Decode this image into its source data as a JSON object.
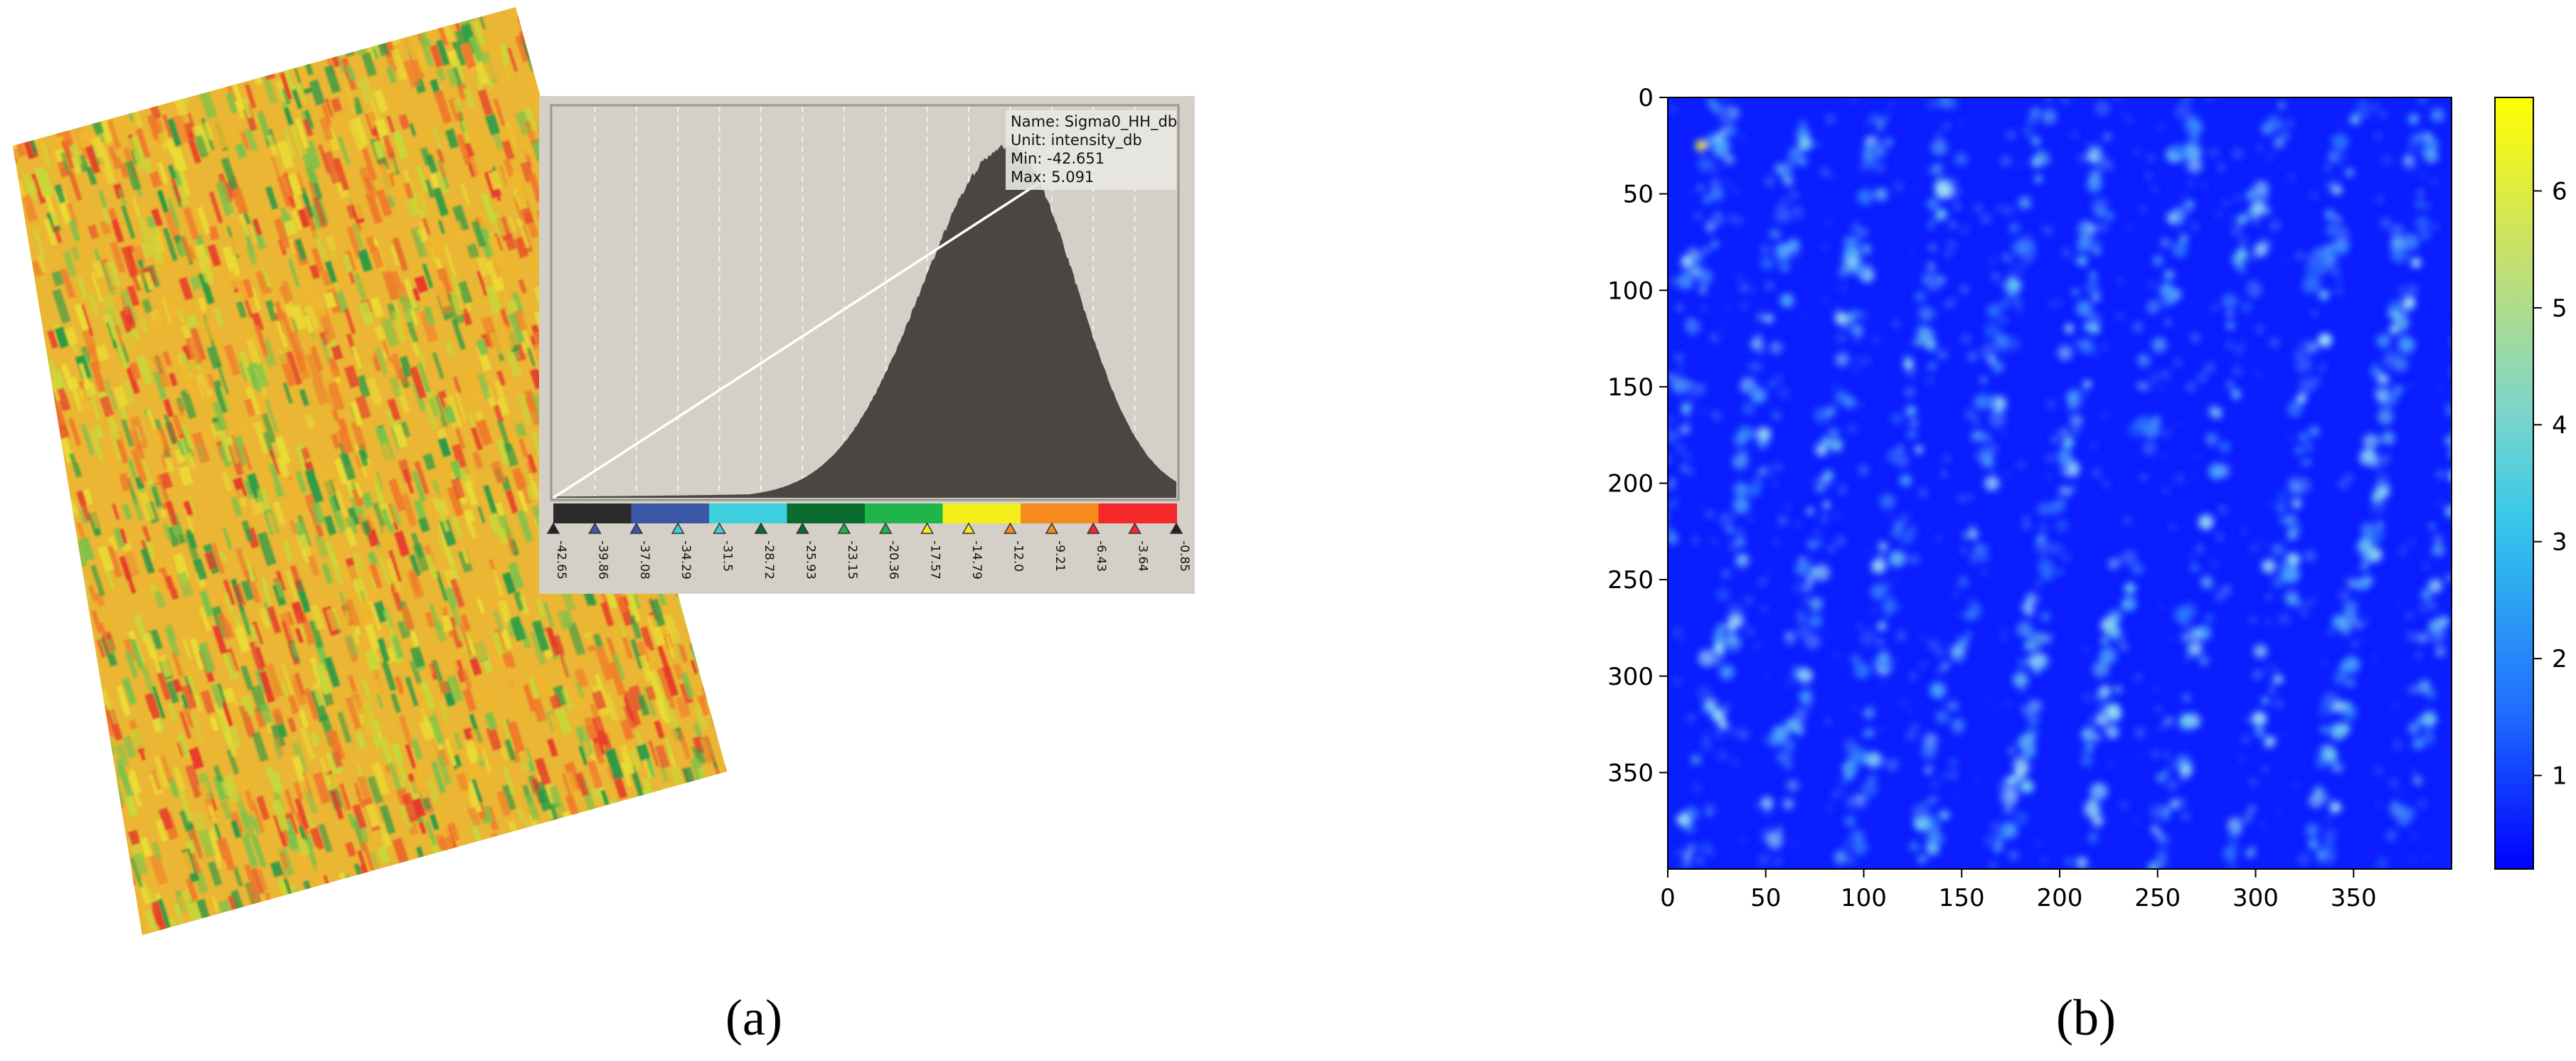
{
  "panel_a": {
    "caption": "(a)",
    "info": {
      "name": "Name: Sigma0_HH_db",
      "unit": "Unit: intensity_db",
      "min": "Min: -42.651",
      "max": "Max: 5.091"
    },
    "color_ramp": [
      "#2b2b2b",
      "#3a57a6",
      "#3ecfdc",
      "#0a6b2f",
      "#1fb54a",
      "#f4ef1a",
      "#f58a1f",
      "#f5282c"
    ],
    "image_palette": [
      "#e63b2a",
      "#f07a2a",
      "#f0b62e",
      "#e9dc35",
      "#c7d83a",
      "#7cc24a",
      "#2a9a46"
    ],
    "slider_values": [
      "-42.65",
      "-39.86",
      "-37.08",
      "-34.29",
      "-31.5",
      "-28.72",
      "-25.93",
      "-23.15",
      "-20.36",
      "-17.57",
      "-14.79",
      "-12.0",
      "-9.21",
      "-6.43",
      "-3.64",
      "-0.85"
    ],
    "slider_colors": [
      "#222222",
      "#3f57a8",
      "#3f57a8",
      "#3ecfdc",
      "#3ecfdc",
      "#0a6b2f",
      "#0a6b2f",
      "#1fb54a",
      "#1fb54a",
      "#f4ef1a",
      "#f4ef1a",
      "#f58a1f",
      "#f58a1f",
      "#f5282c",
      "#f5282c",
      "#222222"
    ]
  },
  "chart_data": {
    "type": "heatmap",
    "caption": "(b)",
    "x_ticks": [
      "0",
      "50",
      "100",
      "150",
      "200",
      "250",
      "300",
      "350"
    ],
    "y_ticks": [
      "0",
      "50",
      "100",
      "150",
      "200",
      "250",
      "300",
      "350"
    ],
    "xlim": [
      0,
      400
    ],
    "ylim": [
      0,
      400
    ],
    "colorbar": {
      "range": [
        0.2,
        6.8
      ],
      "ticks": [
        "1",
        "2",
        "3",
        "4",
        "5",
        "6"
      ],
      "colormap": [
        "#0000ff",
        "#1f6bff",
        "#36c8ea",
        "#7fd6c8",
        "#c8e06a",
        "#ffff00"
      ]
    },
    "background_color": "#0a1eff"
  }
}
